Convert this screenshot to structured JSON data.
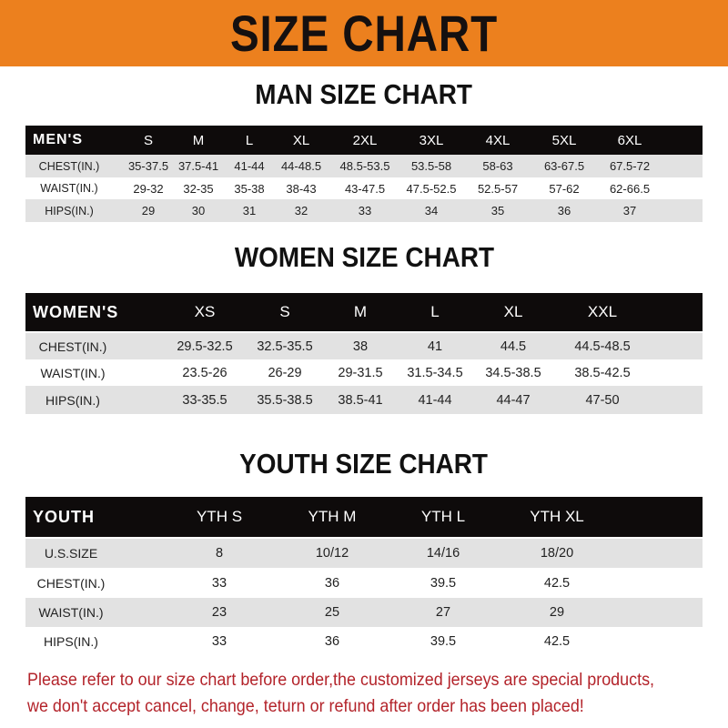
{
  "title": "SIZE CHART",
  "colors": {
    "banner": "#ec801e",
    "header_row": "#0e0b0b",
    "stripe": "#e2e2e2",
    "notice": "#b3232a"
  },
  "men": {
    "title": "MAN SIZE CHART",
    "columns": [
      "MEN'S",
      "S",
      "M",
      "L",
      "XL",
      "2XL",
      "3XL",
      "4XL",
      "5XL",
      "6XL"
    ],
    "rows": [
      [
        "CHEST(IN.)",
        "35-37.5",
        "37.5-41",
        "41-44",
        "44-48.5",
        "48.5-53.5",
        "53.5-58",
        "58-63",
        "63-67.5",
        "67.5-72"
      ],
      [
        "WAIST(IN.)",
        "29-32",
        "32-35",
        "35-38",
        "38-43",
        "43-47.5",
        "47.5-52.5",
        "52.5-57",
        "57-62",
        "62-66.5"
      ],
      [
        "HIPS(IN.)",
        "29",
        "30",
        "31",
        "32",
        "33",
        "34",
        "35",
        "36",
        "37"
      ]
    ]
  },
  "women": {
    "title": "WOMEN SIZE CHART",
    "columns": [
      "WOMEN'S",
      "XS",
      "S",
      "M",
      "L",
      "XL",
      "XXL"
    ],
    "rows": [
      [
        "CHEST(IN.)",
        "29.5-32.5",
        "32.5-35.5",
        "38",
        "41",
        "44.5",
        "44.5-48.5"
      ],
      [
        "WAIST(IN.)",
        "23.5-26",
        "26-29",
        "29-31.5",
        "31.5-34.5",
        "34.5-38.5",
        "38.5-42.5"
      ],
      [
        "HIPS(IN.)",
        "33-35.5",
        "35.5-38.5",
        "38.5-41",
        "41-44",
        "44-47",
        "47-50"
      ]
    ]
  },
  "youth": {
    "title": "YOUTH SIZE CHART",
    "columns": [
      "YOUTH",
      "YTH S",
      "YTH M",
      "YTH L",
      "YTH XL"
    ],
    "rows": [
      [
        "U.S.SIZE",
        "8",
        "10/12",
        "14/16",
        "18/20"
      ],
      [
        "CHEST(IN.)",
        "33",
        "36",
        "39.5",
        "42.5"
      ],
      [
        "WAIST(IN.)",
        "23",
        "25",
        "27",
        "29"
      ],
      [
        "HIPS(IN.)",
        "33",
        "36",
        "39.5",
        "42.5"
      ]
    ]
  },
  "notice": {
    "line1": "Please refer to our size chart before order,the customized jerseys are special products,",
    "line2": "we don't accept cancel, change, teturn or refund after order has been placed!"
  }
}
